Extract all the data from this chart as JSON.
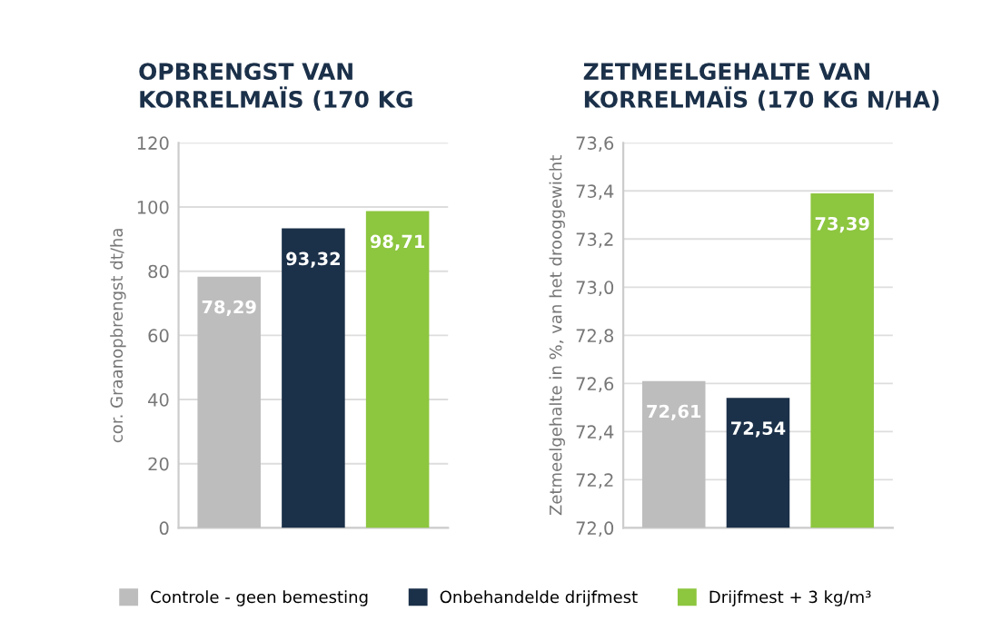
{
  "chart_data": [
    {
      "type": "bar",
      "title": "OPBRENGST VAN\nKORRELMAÏS (170 KG",
      "ylabel": "cor. Graanopbrengst dt/ha",
      "categories": [
        null,
        null,
        null
      ],
      "stacked": true,
      "series": [
        {
          "name": "Controle - geen bemesting",
          "color": "#bdbdbd",
          "values": [
            78.29,
            null,
            null
          ],
          "value_labels": [
            "78,29",
            null,
            null
          ]
        },
        {
          "name": "Onbehandelde drijfmest",
          "color": "#1b3049",
          "values": [
            null,
            93.32,
            null
          ],
          "value_labels": [
            null,
            "93,32",
            null
          ]
        },
        {
          "name": "Drijfmest + 3 kg/m³",
          "color": "#8dc63f",
          "values": [
            null,
            null,
            98.71
          ],
          "value_labels": [
            null,
            null,
            "98,71"
          ]
        }
      ],
      "ylim": [
        0,
        120
      ],
      "yticks": [
        0,
        20,
        40,
        60,
        80,
        100,
        120
      ],
      "grid": "y",
      "legend": "bottom"
    },
    {
      "type": "bar",
      "title": "ZETMEELGEHALTE VAN\nKORRELMAÏS (170 KG N/HA)",
      "ylabel": "Zetmeelgehalte in %, van het drooggewicht",
      "categories": [
        null,
        null,
        null
      ],
      "stacked": true,
      "series": [
        {
          "color": "#bdbdbd",
          "values": [
            72.61,
            null,
            null
          ],
          "value_labels": [
            "72,61",
            null,
            null
          ]
        },
        {
          "color": "#1b3049",
          "values": [
            null,
            72.54,
            null
          ],
          "value_labels": [
            null,
            "72,54",
            null
          ]
        },
        {
          "color": "#8dc63f",
          "values": [
            null,
            null,
            73.39
          ],
          "value_labels": [
            null,
            null,
            "73,39"
          ]
        }
      ],
      "ylim": [
        72.0,
        73.6
      ],
      "yticks": [
        {
          "value": 72.0,
          "label": "72,0"
        },
        {
          "value": 72.2,
          "label": "72,2"
        },
        {
          "value": 72.4,
          "label": "72,4"
        },
        {
          "value": 72.6,
          "label": "72,6"
        },
        {
          "value": 72.8,
          "label": "72,8"
        },
        {
          "value": 73.0,
          "label": "73,0"
        },
        {
          "value": 73.2,
          "label": "73,2"
        },
        {
          "value": 73.4,
          "label": "73,4"
        },
        {
          "value": 73.6,
          "label": "73,6"
        }
      ],
      "grid": "y"
    }
  ]
}
